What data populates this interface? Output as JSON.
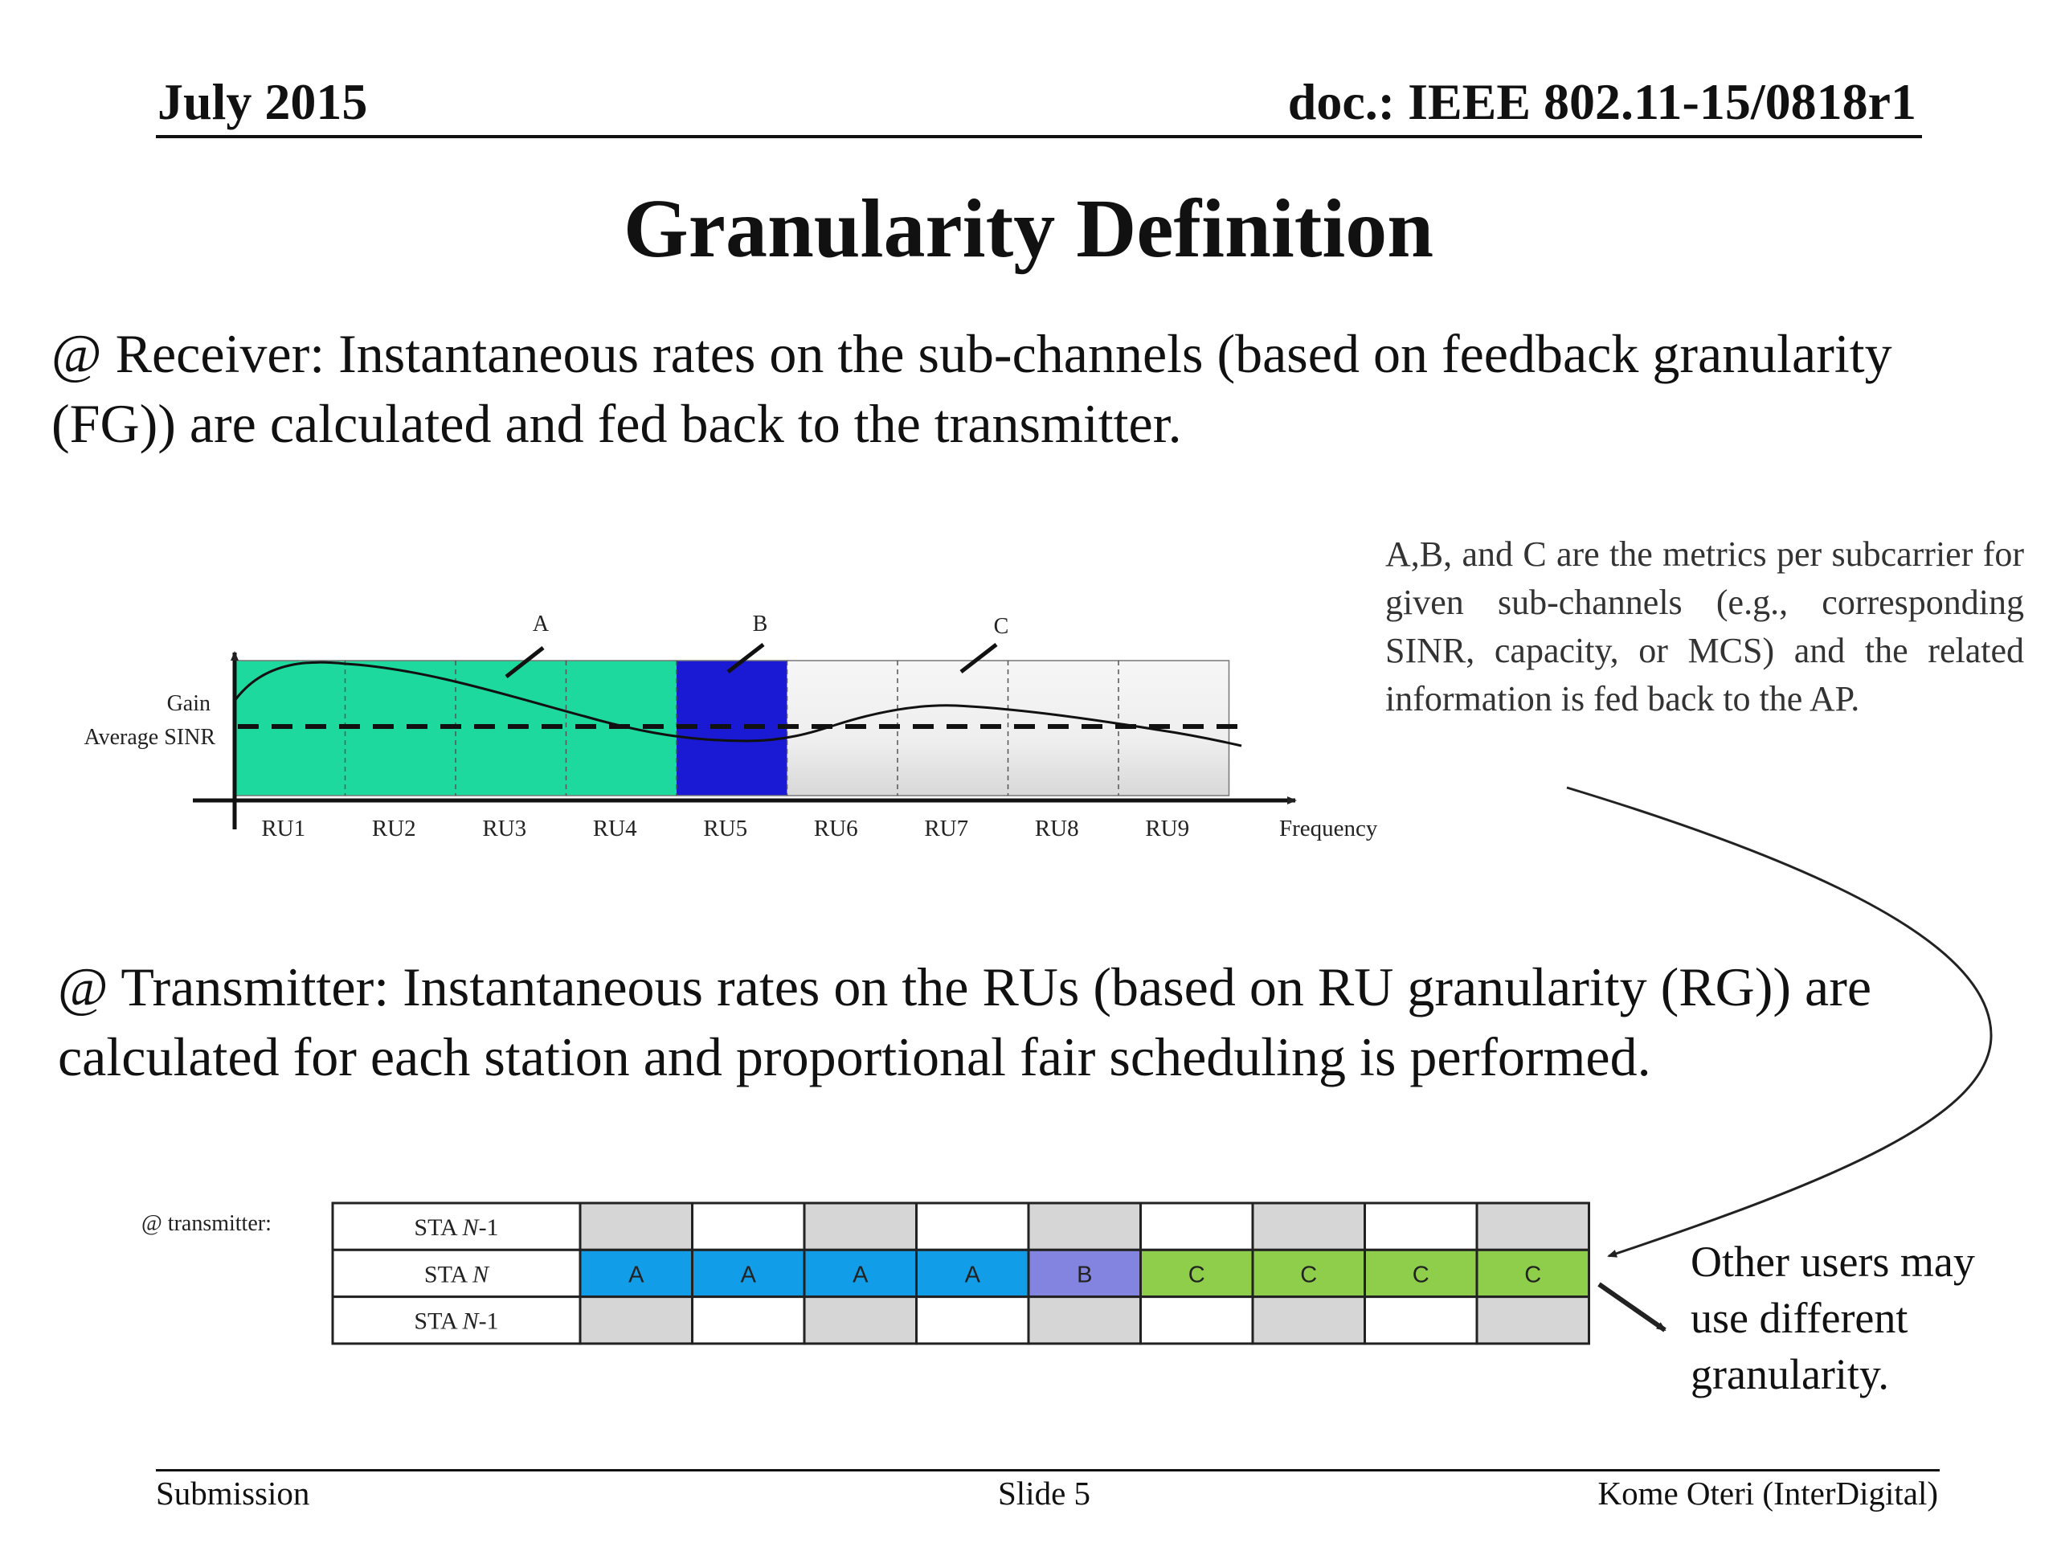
{
  "header": {
    "date": "July 2015",
    "doc_id": "doc.: IEEE 802.11-15/0818r1"
  },
  "slide_title": "Granularity Definition",
  "receiver_text": "@ Receiver: Instantaneous rates on the sub-channels (based on feedback granularity (FG)) are calculated and fed back to the transmitter.",
  "transmitter_text": "@ Transmitter: Instantaneous rates on the RUs (based on RU granularity (RG)) are calculated for each station and proportional fair scheduling is performed.",
  "metrics_note": "A,B, and C are the metrics per subcarrier for given sub-channels (e.g., corresponding SINR, capacity, or MCS) and the related information is fed back to the AP.",
  "other_users_note": "Other users may use different granularity.",
  "freq_chart": {
    "gain_label": "Gain",
    "avg_sinr_label": "Average SINR",
    "x_axis_label": "Frequency",
    "ru_labels": [
      "RU1",
      "RU2",
      "RU3",
      "RU4",
      "RU5",
      "RU6",
      "RU7",
      "RU8",
      "RU9"
    ],
    "groups": [
      {
        "label": "A",
        "ru_span": [
          1,
          4
        ],
        "color": "#1ed99e"
      },
      {
        "label": "B",
        "ru_span": [
          5,
          5
        ],
        "color": "#1a1ad4"
      },
      {
        "label": "C",
        "ru_span": [
          6,
          9
        ],
        "color": "#e8e8e8"
      }
    ]
  },
  "schedule": {
    "row_label": "@ transmitter:",
    "rows": [
      {
        "station": "STA N-1",
        "station_prefix": "STA ",
        "station_italic": "N",
        "station_suffix": "-1",
        "cells": [
          "",
          "",
          "",
          "",
          "",
          "",
          "",
          "",
          ""
        ]
      },
      {
        "station": "STA N",
        "station_prefix": "STA ",
        "station_italic": "N",
        "station_suffix": "",
        "cells": [
          "A",
          "A",
          "A",
          "A",
          "B",
          "C",
          "C",
          "C",
          "C"
        ]
      },
      {
        "station": "STA N-1",
        "station_prefix": "STA ",
        "station_italic": "N",
        "station_suffix": "-1",
        "cells": [
          "",
          "",
          "",
          "",
          "",
          "",
          "",
          "",
          ""
        ]
      }
    ],
    "cell_colors": {
      "A": "#119de8",
      "B": "#8383e0",
      "C": "#8fce4b"
    },
    "grey_fill": "#d6d6d6",
    "white_fill": "#ffffff"
  },
  "footer": {
    "left": "Submission",
    "center": "Slide 5",
    "right": "Kome Oteri (InterDigital)"
  }
}
